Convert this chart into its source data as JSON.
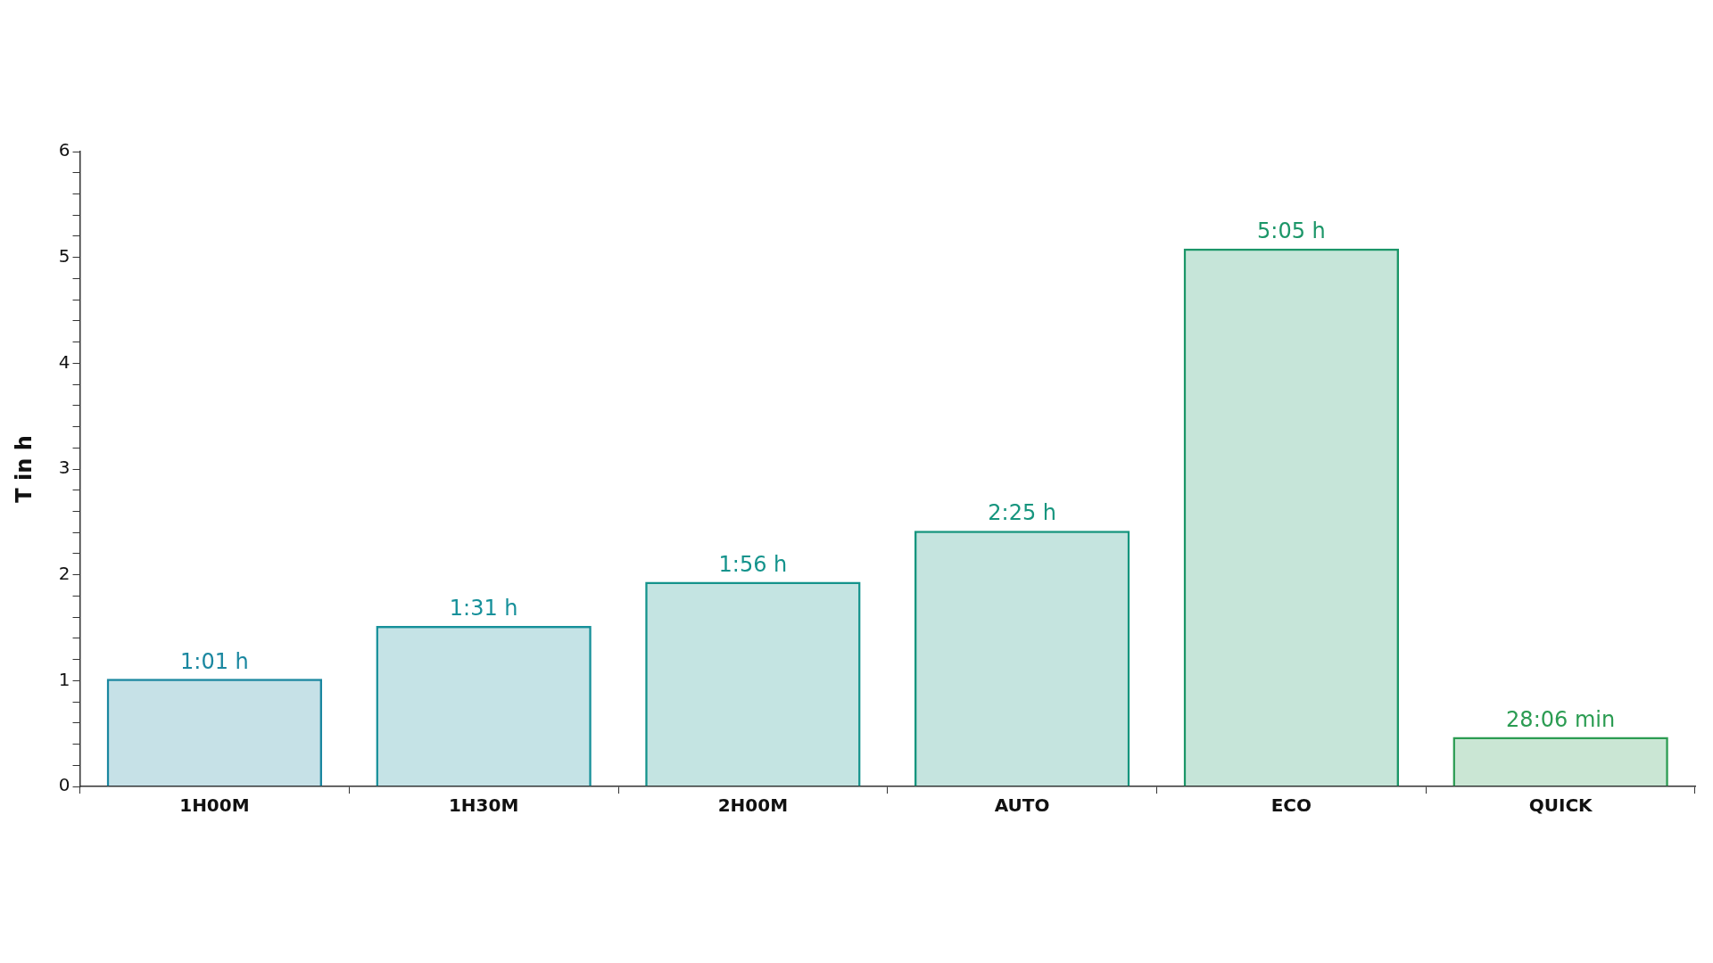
{
  "chart_data": {
    "type": "bar",
    "ylabel": "T in h",
    "categories": [
      "1H00M",
      "1H30M",
      "2H00M",
      "AUTO",
      "ECO",
      "QUICK"
    ],
    "values": [
      1.0167,
      1.5167,
      1.9333,
      2.4167,
      5.0833,
      0.4683
    ],
    "value_labels": [
      "1:01 h",
      "1:31 h",
      "1:56 h",
      "2:25 h",
      "5:05 h",
      "28:06 min"
    ],
    "colors": [
      "#1a87a0",
      "#16909a",
      "#14938c",
      "#16957e",
      "#1b9668",
      "#2b9c52"
    ],
    "ylim": [
      0,
      6
    ],
    "yticks": [
      0,
      {
        "value": 0.2,
        "label": null
      },
      {
        "value": 0.4,
        "label": null
      },
      {
        "value": 0.6,
        "label": null
      },
      {
        "value": 0.8,
        "label": null
      },
      1,
      {
        "value": 1.2,
        "label": null
      },
      {
        "value": 1.4,
        "label": null
      },
      {
        "value": 1.6,
        "label": null
      },
      {
        "value": 1.8,
        "label": null
      },
      2,
      {
        "value": 2.2,
        "label": null
      },
      {
        "value": 2.4,
        "label": null
      },
      {
        "value": 2.6,
        "label": null
      },
      {
        "value": 2.8,
        "label": null
      },
      3,
      {
        "value": 3.2,
        "label": null
      },
      {
        "value": 3.4,
        "label": null
      },
      {
        "value": 3.6,
        "label": null
      },
      {
        "value": 3.8,
        "label": null
      },
      4,
      {
        "value": 4.2,
        "label": null
      },
      {
        "value": 4.4,
        "label": null
      },
      {
        "value": 4.6,
        "label": null
      },
      {
        "value": 4.8,
        "label": null
      },
      5,
      {
        "value": 5.2,
        "label": null
      },
      {
        "value": 5.4,
        "label": null
      },
      {
        "value": 5.6,
        "label": null
      },
      {
        "value": 5.8,
        "label": null
      },
      6
    ],
    "grid": false,
    "legend": false
  }
}
